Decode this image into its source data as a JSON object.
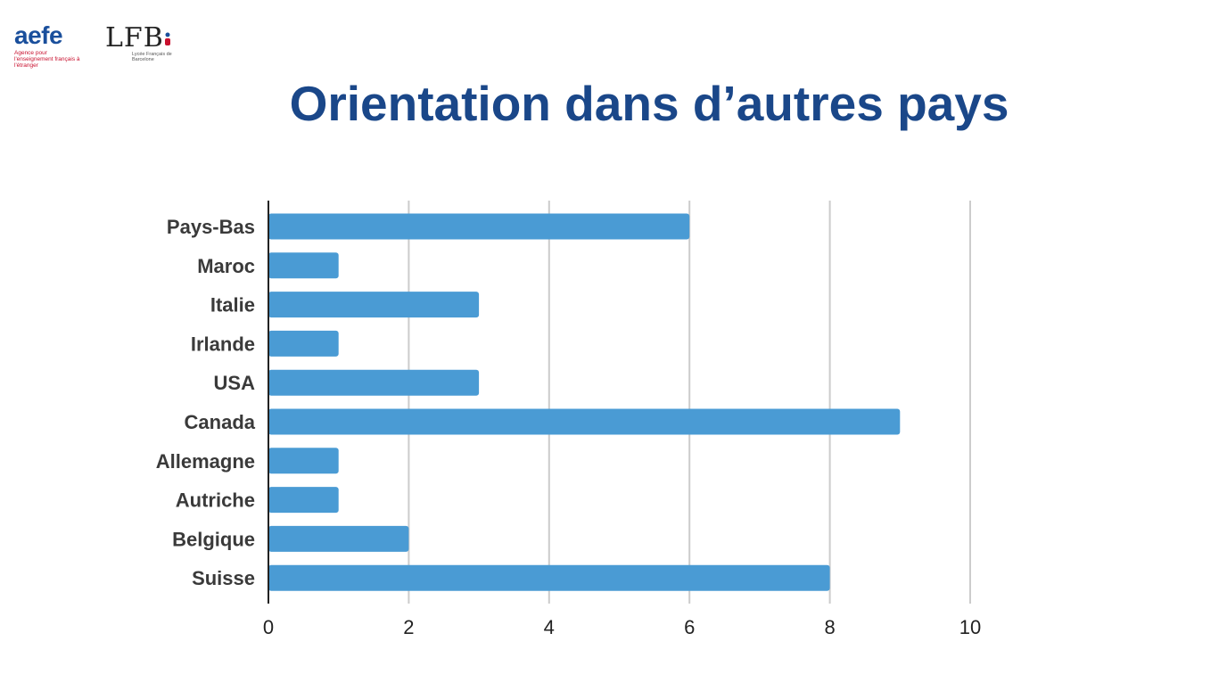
{
  "logos": {
    "aefe": {
      "name": "aefe",
      "subtitle": "Agence pour l'enseignement français à l'étranger"
    },
    "lfb": {
      "name": "LFB",
      "subtitle": "Lycée Français de Barcelone"
    }
  },
  "slide": {
    "title": "Orientation dans d’autres pays"
  },
  "colors": {
    "bar": "#4a9bd4",
    "title": "#1a4789",
    "grid": "#cccccc",
    "axis": "#222222",
    "label": "#3a3a3a"
  },
  "chart_data": {
    "type": "bar",
    "orientation": "horizontal",
    "categories": [
      "Pays-Bas",
      "Maroc",
      "Italie",
      "Irlande",
      "USA",
      "Canada",
      "Allemagne",
      "Autriche",
      "Belgique",
      "Suisse"
    ],
    "values": [
      6,
      1,
      3,
      1,
      3,
      9,
      1,
      1,
      2,
      8
    ],
    "xlim": [
      0,
      10
    ],
    "xticks": [
      0,
      2,
      4,
      6,
      8,
      10
    ],
    "grid": "vertical",
    "legend": "none"
  }
}
